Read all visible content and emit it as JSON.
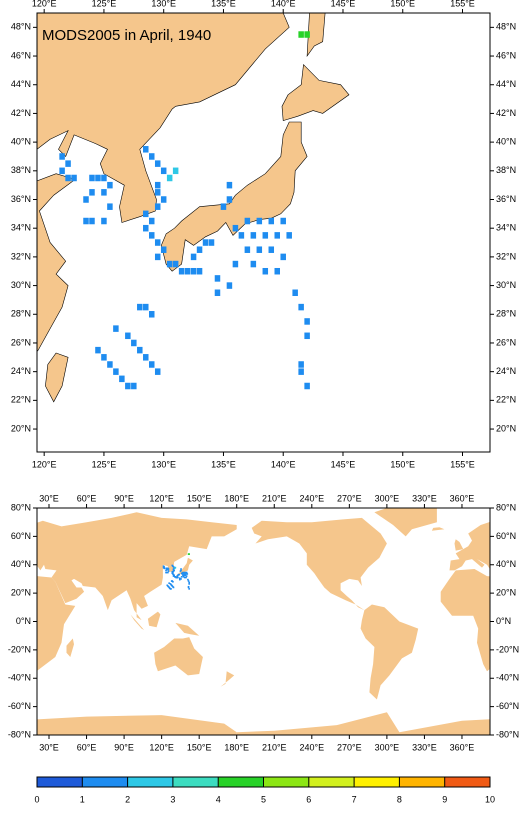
{
  "maps": [
    {
      "title": "MODS2005 in April, 1940",
      "xlim": [
        119.4,
        157.3
      ],
      "ylim": [
        18.4,
        49.0
      ],
      "xticks": [
        {
          "value": 120,
          "label": "120°E"
        },
        {
          "value": 125,
          "label": "125°E"
        },
        {
          "value": 130,
          "label": "130°E"
        },
        {
          "value": 135,
          "label": "135°E"
        },
        {
          "value": 140,
          "label": "140°E"
        },
        {
          "value": 145,
          "label": "145°E"
        },
        {
          "value": 150,
          "label": "150°E"
        },
        {
          "value": 155,
          "label": "155°E"
        }
      ],
      "yticks": [
        {
          "value": 20,
          "label": "20°N"
        },
        {
          "value": 22,
          "label": "22°N"
        },
        {
          "value": 24,
          "label": "24°N"
        },
        {
          "value": 26,
          "label": "26°N"
        },
        {
          "value": 28,
          "label": "28°N"
        },
        {
          "value": 30,
          "label": "30°N"
        },
        {
          "value": 32,
          "label": "32°N"
        },
        {
          "value": 34,
          "label": "34°N"
        },
        {
          "value": 36,
          "label": "36°N"
        },
        {
          "value": 38,
          "label": "38°N"
        },
        {
          "value": 40,
          "label": "40°N"
        },
        {
          "value": 42,
          "label": "42°N"
        },
        {
          "value": 44,
          "label": "44°N"
        },
        {
          "value": 46,
          "label": "46°N"
        },
        {
          "value": 48,
          "label": "48°N"
        }
      ]
    },
    {
      "xlim": [
        20.4,
        382.4
      ],
      "ylim": [
        -80,
        80
      ],
      "xticks": [
        {
          "value": 30,
          "label": "30°E"
        },
        {
          "value": 60,
          "label": "60°E"
        },
        {
          "value": 90,
          "label": "90°E"
        },
        {
          "value": 120,
          "label": "120°E"
        },
        {
          "value": 150,
          "label": "150°E"
        },
        {
          "value": 180,
          "label": "180°E"
        },
        {
          "value": 210,
          "label": "210°E"
        },
        {
          "value": 240,
          "label": "240°E"
        },
        {
          "value": 270,
          "label": "270°E"
        },
        {
          "value": 300,
          "label": "300°E"
        },
        {
          "value": 330,
          "label": "330°E"
        },
        {
          "value": 360,
          "label": "360°E"
        }
      ],
      "yticks": [
        {
          "value": -80,
          "label": "-80°N"
        },
        {
          "value": -60,
          "label": "-60°N"
        },
        {
          "value": -40,
          "label": "-40°N"
        },
        {
          "value": -20,
          "label": "-20°N"
        },
        {
          "value": 0,
          "label": "0°N"
        },
        {
          "value": 20,
          "label": "20°N"
        },
        {
          "value": 40,
          "label": "40°N"
        },
        {
          "value": 60,
          "label": "60°N"
        },
        {
          "value": 80,
          "label": "80°N"
        }
      ]
    }
  ],
  "observations": {
    "lon": [
      121.5,
      122.0,
      121.5,
      122.0,
      122.5,
      124.0,
      124.5,
      125.0,
      125.5,
      125.0,
      124.0,
      123.5,
      125.5,
      125.0,
      124.0,
      123.5,
      128.5,
      129.0,
      129.5,
      130.0,
      131.0,
      130.5,
      129.5,
      129.5,
      130.0,
      129.5,
      128.5,
      129.0,
      128.5,
      129.0,
      129.5,
      130.0,
      129.5,
      130.5,
      131.0,
      131.5,
      132.0,
      132.5,
      133.0,
      132.5,
      133.0,
      133.5,
      134.0,
      135.5,
      135.5,
      135.0,
      136.0,
      137.0,
      138.0,
      139.0,
      140.0,
      136.5,
      137.5,
      138.5,
      139.5,
      140.5,
      137.0,
      138.0,
      139.0,
      140.0,
      136.0,
      137.5,
      138.5,
      139.5,
      134.5,
      135.5,
      134.5,
      141.0,
      141.5,
      142.0,
      142.0,
      128.0,
      128.5,
      129.0,
      126.0,
      127.0,
      127.5,
      128.0,
      128.5,
      129.0,
      129.5,
      124.5,
      125.0,
      125.5,
      126.0,
      126.5,
      127.0,
      127.5,
      141.5,
      141.5,
      142.0,
      141.5,
      142.0
    ],
    "lat": [
      39.0,
      38.5,
      38.0,
      37.5,
      37.5,
      37.5,
      37.5,
      37.5,
      37.0,
      36.5,
      36.5,
      36.0,
      35.5,
      34.5,
      34.5,
      34.5,
      39.5,
      39.0,
      38.5,
      38.0,
      38.0,
      37.5,
      37.0,
      36.5,
      36.0,
      35.5,
      35.0,
      34.5,
      34.0,
      33.5,
      33.0,
      32.5,
      32.0,
      31.5,
      31.5,
      31.0,
      31.0,
      31.0,
      31.0,
      32.0,
      32.5,
      33.0,
      33.0,
      37.0,
      36.0,
      35.5,
      34.0,
      34.5,
      34.5,
      34.5,
      34.5,
      33.5,
      33.5,
      33.5,
      33.5,
      33.5,
      32.5,
      32.5,
      32.5,
      32.0,
      31.5,
      31.5,
      31.0,
      31.0,
      30.5,
      30.0,
      29.5,
      29.5,
      28.5,
      27.5,
      26.5,
      28.5,
      28.5,
      28.0,
      27.0,
      26.5,
      26.0,
      25.5,
      25.0,
      24.5,
      24.0,
      25.5,
      25.0,
      24.5,
      24.0,
      23.5,
      23.0,
      23.0,
      24.5,
      24.0,
      23.0,
      47.5,
      47.5
    ],
    "values": [
      1.5,
      1.5,
      1.5,
      1.5,
      1.5,
      1.5,
      1.5,
      1.5,
      1.5,
      1.5,
      1.5,
      1.5,
      1.5,
      1.5,
      1.5,
      1.5,
      1.5,
      1.5,
      1.5,
      1.5,
      2.5,
      2.5,
      1.5,
      1.5,
      1.5,
      1.5,
      1.5,
      1.5,
      1.5,
      1.5,
      1.5,
      1.5,
      1.5,
      1.5,
      1.5,
      1.5,
      1.5,
      1.5,
      1.5,
      1.5,
      1.5,
      1.5,
      1.5,
      1.5,
      1.5,
      1.5,
      1.5,
      1.5,
      1.5,
      1.5,
      1.5,
      1.5,
      1.5,
      1.5,
      1.5,
      1.5,
      1.5,
      1.5,
      1.5,
      1.5,
      1.5,
      1.5,
      1.5,
      1.5,
      1.5,
      1.5,
      1.5,
      1.5,
      1.5,
      1.5,
      1.5,
      1.5,
      1.5,
      1.5,
      1.5,
      1.5,
      1.5,
      1.5,
      1.5,
      1.5,
      1.5,
      1.5,
      1.5,
      1.5,
      1.5,
      1.5,
      1.5,
      1.5,
      1.5,
      1.5,
      1.5,
      4.5,
      4.5
    ]
  },
  "colorbar": {
    "lim": [
      0,
      10
    ],
    "ticks": [
      0,
      1,
      2,
      3,
      4,
      5,
      6,
      7,
      8,
      9,
      10
    ],
    "colors": [
      "#1e5ad8",
      "#1e8cf0",
      "#2ec8e6",
      "#3cdcc0",
      "#28d228",
      "#8ce614",
      "#d2f01e",
      "#fff000",
      "#ffb400",
      "#f05a14"
    ]
  },
  "land_color": "#f5c68c"
}
